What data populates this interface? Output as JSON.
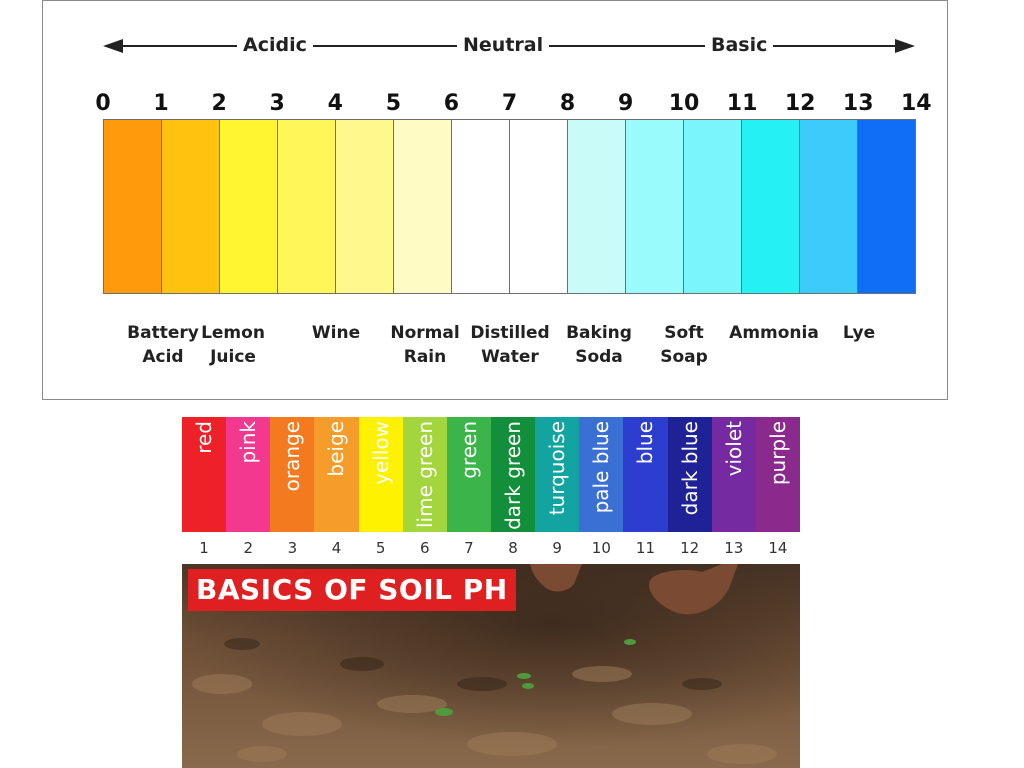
{
  "top_chart": {
    "scale": {
      "acidic": "Acidic",
      "neutral": "Neutral",
      "basic": "Basic"
    },
    "ph_numbers": [
      "0",
      "1",
      "2",
      "3",
      "4",
      "5",
      "6",
      "7",
      "8",
      "9",
      "10",
      "11",
      "12",
      "13",
      "14"
    ],
    "segment_colors": [
      "#ff9a0c",
      "#ffc20e",
      "#fff530",
      "#fff65a",
      "#fff88c",
      "#fffbc4",
      "#ffffff",
      "#ffffff",
      "#c9fbf8",
      "#99fbfc",
      "#79f5fb",
      "#25f1f4",
      "#3ccbfb",
      "#0f6ef6"
    ],
    "examples": [
      {
        "lines": [
          "Battery",
          "Acid"
        ]
      },
      {
        "lines": [
          "Lemon",
          "Juice"
        ]
      },
      {
        "lines": [
          "Wine",
          ""
        ]
      },
      {
        "lines": [
          "Normal",
          "Rain"
        ]
      },
      {
        "lines": [
          "Distilled",
          "Water"
        ]
      },
      {
        "lines": [
          "Baking",
          "Soda"
        ]
      },
      {
        "lines": [
          "Soft",
          "Soap"
        ]
      },
      {
        "lines": [
          "Ammonia",
          ""
        ]
      },
      {
        "lines": [
          "Lye",
          ""
        ]
      }
    ]
  },
  "soil_panel": {
    "title": "BASICS OF SOIL PH",
    "color_names": [
      "red",
      "pink",
      "orange",
      "beige",
      "yellow",
      "lime green",
      "green",
      "dark green",
      "turquoise",
      "pale blue",
      "blue",
      "dark blue",
      "violet",
      "purple"
    ],
    "block_colors": [
      "#ee2028",
      "#f2388f",
      "#f47a1f",
      "#f59c2a",
      "#fff200",
      "#a3d63c",
      "#3bb54a",
      "#138e3b",
      "#13a3a0",
      "#3a6fd3",
      "#2d3dd0",
      "#1e2296",
      "#762aa1",
      "#8a2a8d"
    ],
    "numbers": [
      "1",
      "2",
      "3",
      "4",
      "5",
      "6",
      "7",
      "8",
      "9",
      "10",
      "11",
      "12",
      "13",
      "14"
    ]
  }
}
